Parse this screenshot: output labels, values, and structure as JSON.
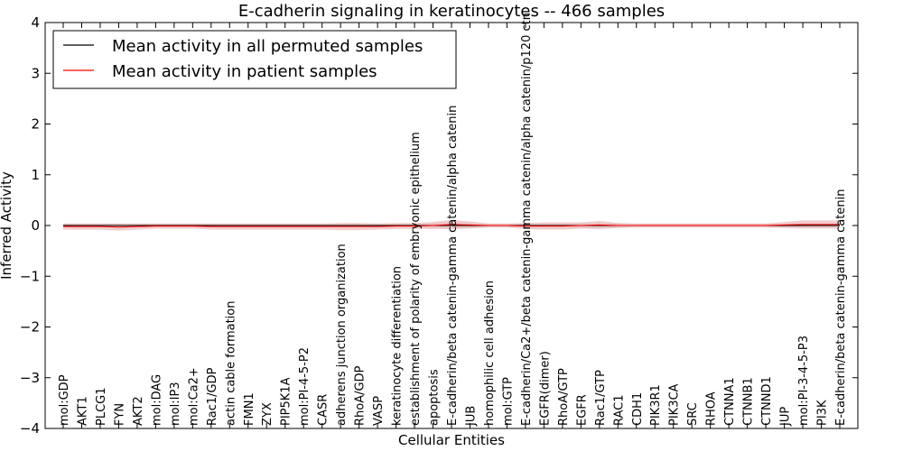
{
  "chart_data": {
    "type": "line",
    "title": "E-cadherin signaling in keratinocytes -- 466 samples",
    "xlabel": "Cellular Entities",
    "ylabel": "Inferred Activity",
    "ylim": [
      -4,
      4
    ],
    "yticks": [
      4,
      3,
      2,
      1,
      0,
      -1,
      -2,
      -3,
      -4
    ],
    "ytick_labels": [
      "4",
      "3",
      "2",
      "1",
      "0",
      "−1",
      "−2",
      "−3",
      "−4"
    ],
    "grid": false,
    "legend_placement": "top-left",
    "categories": [
      "mol:GDP",
      "AKT1",
      "PLCG1",
      "FYN",
      "AKT2",
      "mol:DAG",
      "mol:IP3",
      "mol:Ca2+",
      "Rac1/GDP",
      "actin cable formation",
      "FMN1",
      "ZYX",
      "PIP5K1A",
      "mol:PI-4-5-P2",
      "CASR",
      "adherens junction organization",
      "RhoA/GDP",
      "VASP",
      "keratinocyte differentiation",
      "establishment of polarity of embryonic epithelium",
      "apoptosis",
      "E-cadherin/beta catenin-gamma catenin/alpha catenin",
      "JUB",
      "homophilic cell adhesion",
      "mol:GTP",
      "E-cadherin/Ca2+/beta catenin-gamma catenin/alpha catenin/p120 ctn",
      "EGFR(dimer)",
      "RhoA/GTP",
      "EGFR",
      "Rac1/GTP",
      "RAC1",
      "CDH1",
      "PIK3R1",
      "PIK3CA",
      "SRC",
      "RHOA",
      "CTNNA1",
      "CTNNB1",
      "CTNND1",
      "JUP",
      "mol:PI-3-4-5-P3",
      "PI3K",
      "E-cadherin/beta catenin-gamma catenin"
    ],
    "series": [
      {
        "name": "Mean activity in all permuted samples",
        "color": "#000000",
        "values": [
          0,
          0,
          0,
          0,
          0,
          0,
          0,
          0,
          0,
          0,
          0,
          0,
          0,
          0,
          0,
          0,
          0,
          0,
          0,
          0,
          0,
          0,
          0,
          0,
          0,
          0,
          0,
          0,
          0,
          0,
          0,
          0,
          0,
          0,
          0,
          0,
          0,
          0,
          0,
          0,
          0,
          0,
          0
        ],
        "band": [
          0.03,
          0.03,
          0.03,
          0.03,
          0.03,
          0.03,
          0.03,
          0.03,
          0.03,
          0.03,
          0.03,
          0.03,
          0.03,
          0.03,
          0.03,
          0.03,
          0.03,
          0.03,
          0.03,
          0.03,
          0.04,
          0.05,
          0.04,
          0.03,
          0.03,
          0.04,
          0.04,
          0.04,
          0.04,
          0.05,
          0.04,
          0.03,
          0.03,
          0.03,
          0.03,
          0.03,
          0.03,
          0.03,
          0.03,
          0.03,
          0.03,
          0.03,
          0.03
        ]
      },
      {
        "name": "Mean activity in patient samples",
        "color": "#ff0000",
        "band_color": "#e8a0a0",
        "values": [
          -0.02,
          -0.02,
          -0.02,
          -0.03,
          -0.02,
          -0.01,
          -0.01,
          -0.01,
          -0.02,
          -0.02,
          -0.02,
          -0.02,
          -0.02,
          -0.02,
          -0.02,
          -0.02,
          -0.02,
          -0.02,
          -0.01,
          -0.01,
          0.0,
          0.02,
          0.01,
          0.0,
          0.0,
          -0.01,
          -0.01,
          -0.01,
          0.0,
          0.01,
          0.0,
          0.0,
          0.0,
          0.0,
          0.0,
          0.0,
          0.0,
          0.0,
          0.0,
          0.01,
          0.02,
          0.02,
          0.02
        ],
        "band": [
          0.06,
          0.06,
          0.06,
          0.07,
          0.06,
          0.05,
          0.05,
          0.05,
          0.06,
          0.06,
          0.06,
          0.06,
          0.06,
          0.06,
          0.06,
          0.07,
          0.07,
          0.06,
          0.06,
          0.06,
          0.07,
          0.09,
          0.07,
          0.04,
          0.04,
          0.06,
          0.07,
          0.07,
          0.06,
          0.08,
          0.05,
          0.04,
          0.04,
          0.04,
          0.04,
          0.04,
          0.04,
          0.04,
          0.04,
          0.06,
          0.08,
          0.08,
          0.08
        ]
      }
    ]
  }
}
